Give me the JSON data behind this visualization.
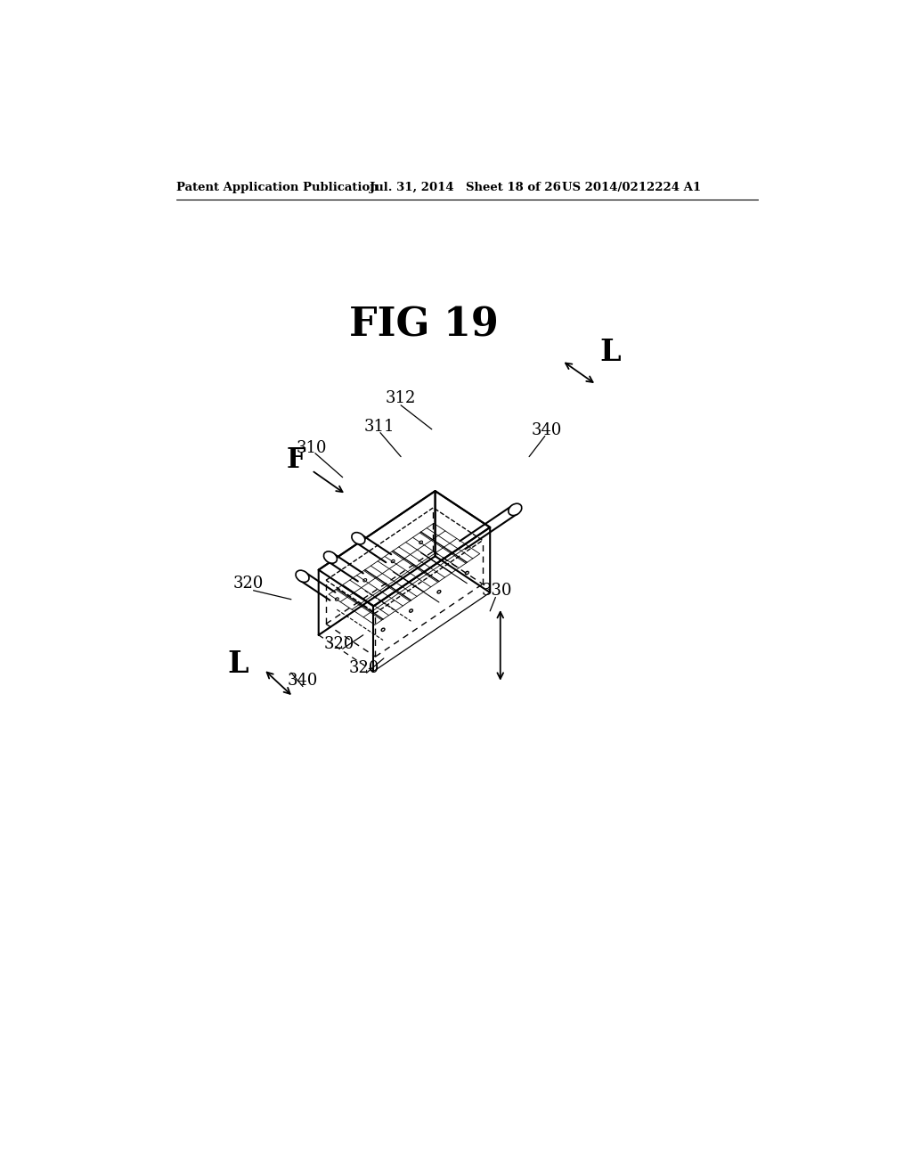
{
  "background_color": "#ffffff",
  "header_text": "Patent Application Publication",
  "header_date": "Jul. 31, 2014",
  "header_sheet": "Sheet 18 of 26",
  "header_patent": "US 2014/0212224 A1",
  "fig_title": "FIG 19",
  "line_color": "#000000",
  "page_width": 1.0,
  "page_height": 1.0
}
